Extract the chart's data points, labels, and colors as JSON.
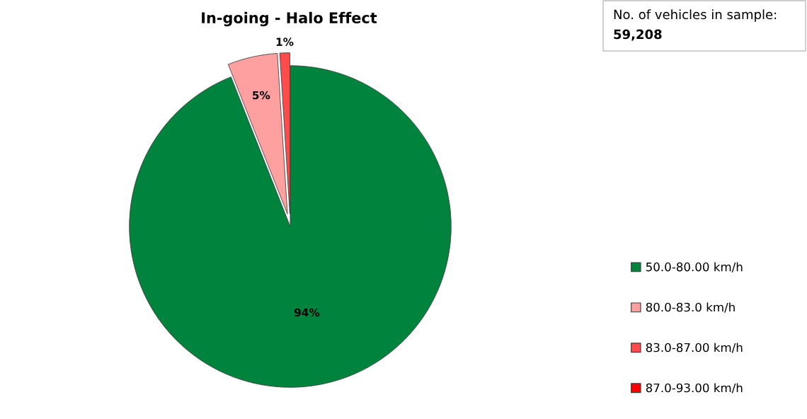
{
  "chart_data": {
    "type": "pie",
    "title": "In-going - Halo Effect",
    "categories": [
      "50.0-80.00 km/h",
      "80.0-83.0 km/h",
      "83.0-87.00 km/h",
      "87.0-93.00 km/h"
    ],
    "values": [
      94,
      5,
      1,
      0
    ],
    "colors": [
      "#00843d",
      "#ffa0a0",
      "#ff4b4b",
      "#ff0000"
    ],
    "value_labels": [
      "94%",
      "5%",
      "1%",
      null
    ],
    "legend": "right",
    "annotations": [
      "No. of vehicles in sample:",
      "59,208"
    ]
  }
}
